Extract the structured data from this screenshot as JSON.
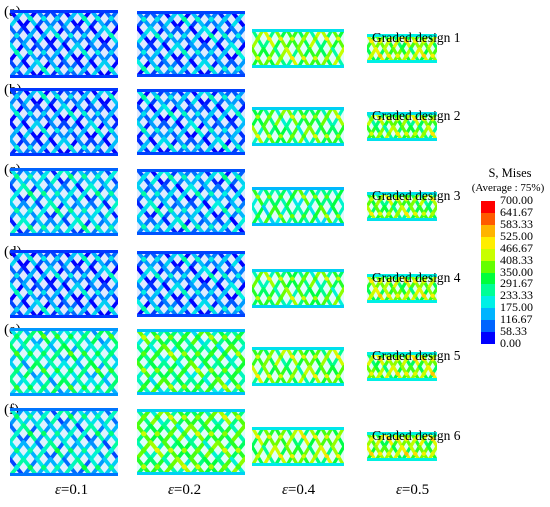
{
  "rows": [
    {
      "label": "(a)",
      "design": "Graded design 1"
    },
    {
      "label": "(b)",
      "design": "Graded design 2"
    },
    {
      "label": "(c)",
      "design": "Graded design 3"
    },
    {
      "label": "(d)",
      "design": "Graded design 4"
    },
    {
      "label": "(e)",
      "design": "Graded design 5"
    },
    {
      "label": "(f)",
      "design": "Graded design 6"
    }
  ],
  "strain_symbol": "ε",
  "strains": [
    "=0.1",
    "=0.2",
    "=0.4",
    "=0.5"
  ],
  "legend": {
    "title": "S, Mises",
    "subtitle": "(Average : 75%)",
    "ticks": [
      "700.00",
      "641.67",
      "583.33",
      "525.00",
      "466.67",
      "408.33",
      "350.00",
      "291.67",
      "233.33",
      "175.00",
      "116.67",
      "58.33",
      "0.00"
    ],
    "colors": [
      "#ff0000",
      "#ff5a00",
      "#ffb400",
      "#ffee00",
      "#c8ff00",
      "#64ff00",
      "#00ff3c",
      "#00ff96",
      "#00f0e6",
      "#00b4ff",
      "#0064ff",
      "#0000ff"
    ]
  },
  "stress_levels": [
    [
      0.1,
      0.12,
      0.5,
      0.55
    ],
    [
      0.1,
      0.12,
      0.45,
      0.5
    ],
    [
      0.18,
      0.15,
      0.38,
      0.5
    ],
    [
      0.1,
      0.12,
      0.45,
      0.55
    ],
    [
      0.3,
      0.4,
      0.5,
      0.55
    ],
    [
      0.22,
      0.45,
      0.52,
      0.56
    ]
  ]
}
